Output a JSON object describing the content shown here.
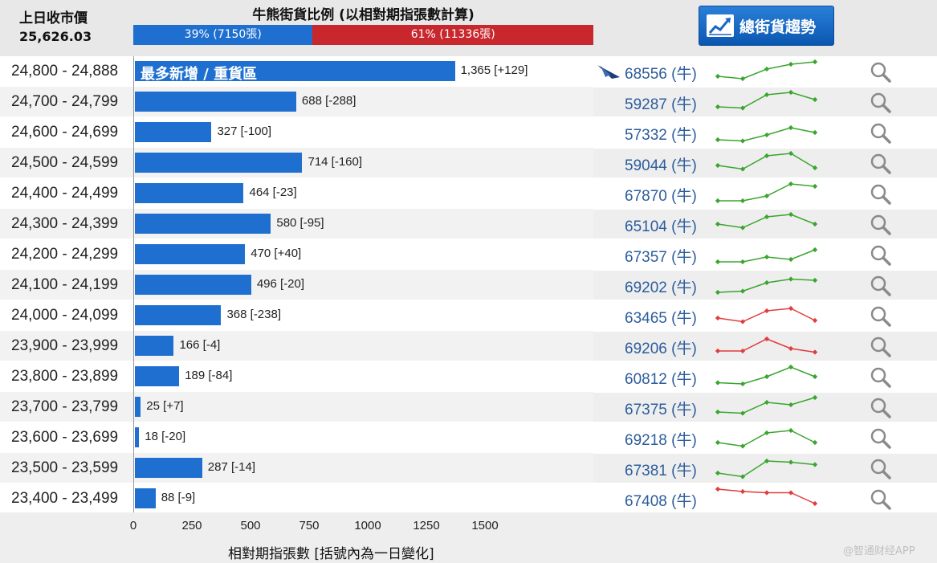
{
  "header": {
    "prev_close_label": "上日收市價",
    "prev_close_value": "25,626.03",
    "ratio_title": "牛熊街貨比例 (以相對期指張數計算)",
    "bull_pct": 39,
    "bull_label": "39% (7150張)",
    "bear_label": "61% (11336張)",
    "trend_button_label": "總街貨趨勢",
    "trend_icon": "trend-up-chart-icon",
    "colors": {
      "bull": "#1f6fd0",
      "bear": "#c8282d"
    }
  },
  "footer": {
    "x_label": "相對期指張數 [括號內為一日變化]",
    "watermark": "@智通财经APP"
  },
  "search_icon": "magnifier-icon",
  "chart_data": {
    "type": "bar",
    "orientation": "horizontal",
    "title": "牛熊街貨比例 (以相對期指張數計算)",
    "xlabel": "相對期指張數 [括號內為一日變化]",
    "xlim": [
      0,
      1500
    ],
    "xticks": [
      "0",
      "250",
      "500",
      "750",
      "1000",
      "1250",
      "1500"
    ],
    "highlight_label": "最多新增 / 重貨區",
    "categories": [
      "24,800 - 24,888",
      "24,700 - 24,799",
      "24,600 - 24,699",
      "24,500 - 24,599",
      "24,400 - 24,499",
      "24,300 - 24,399",
      "24,200 - 24,299",
      "24,100 - 24,199",
      "24,000 - 24,099",
      "23,900 - 23,999",
      "23,800 - 23,899",
      "23,700 - 23,799",
      "23,600 - 23,699",
      "23,500 - 23,599",
      "23,400 - 23,499"
    ],
    "values": [
      1365,
      688,
      327,
      714,
      464,
      580,
      470,
      496,
      368,
      166,
      189,
      25,
      18,
      287,
      88
    ],
    "bar_labels": [
      "1,365 [+129]",
      "688 [-288]",
      "327 [-100]",
      "714 [-160]",
      "464 [-23]",
      "580 [-95]",
      "470 [+40]",
      "496 [-20]",
      "368 [-238]",
      "166 [-4]",
      "189 [-84]",
      "25 [+7]",
      "18 [-20]",
      "287 [-14]",
      "88 [-9]"
    ],
    "street_counts": [
      "68556 (牛)",
      "59287 (牛)",
      "57332 (牛)",
      "59044 (牛)",
      "67870 (牛)",
      "65104 (牛)",
      "67357 (牛)",
      "69202 (牛)",
      "63465 (牛)",
      "69206 (牛)",
      "60812 (牛)",
      "67375 (牛)",
      "69218 (牛)",
      "67381 (牛)",
      "67408 (牛)"
    ],
    "top_row_icon": "arrow-indicator-icon",
    "trend_colors": {
      "up": "#3aa52e",
      "down": "#e23c3c"
    },
    "sparklines": [
      {
        "dir": "up",
        "values": [
          2,
          1,
          5,
          7,
          8
        ]
      },
      {
        "dir": "up",
        "values": [
          2,
          1.5,
          7,
          8,
          5
        ]
      },
      {
        "dir": "up",
        "values": [
          1,
          0.5,
          3,
          6,
          4
        ]
      },
      {
        "dir": "up",
        "values": [
          3,
          1.5,
          7,
          8,
          2
        ]
      },
      {
        "dir": "up",
        "values": [
          1,
          1,
          3,
          8,
          7
        ]
      },
      {
        "dir": "up",
        "values": [
          4,
          2.5,
          7,
          8,
          4
        ]
      },
      {
        "dir": "up",
        "values": [
          1,
          1,
          3,
          2,
          6
        ]
      },
      {
        "dir": "up",
        "values": [
          1,
          1.5,
          5,
          6.5,
          6
        ]
      },
      {
        "dir": "down",
        "values": [
          3,
          1.5,
          6,
          7,
          2
        ]
      },
      {
        "dir": "down",
        "values": [
          2,
          2,
          7,
          3,
          1.5
        ]
      },
      {
        "dir": "up",
        "values": [
          1.5,
          1,
          4,
          8,
          4
        ]
      },
      {
        "dir": "up",
        "values": [
          2,
          1.5,
          6,
          5,
          8
        ]
      },
      {
        "dir": "up",
        "values": [
          2,
          0.5,
          6,
          7,
          2
        ]
      },
      {
        "dir": "up",
        "values": [
          2,
          0.5,
          7,
          6.5,
          5.5
        ]
      },
      {
        "dir": "down",
        "values": [
          8,
          7,
          6.5,
          6.5,
          2
        ]
      }
    ]
  }
}
